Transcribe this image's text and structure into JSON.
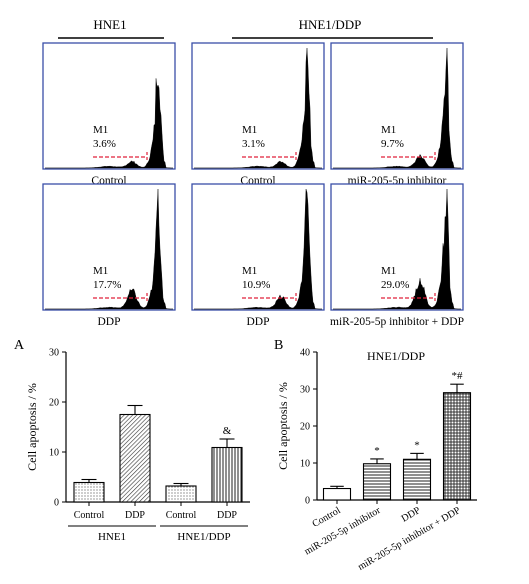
{
  "colors": {
    "panel_border": "#3a4fa8",
    "marker": "#e0203a",
    "histogram": "#000000",
    "axis": "#000000"
  },
  "top_groups": [
    "HNE1",
    "HNE1/DDP"
  ],
  "histograms": [
    {
      "gate": "M1",
      "percent": "3.6%",
      "caption": "Control",
      "value": 3.6
    },
    {
      "gate": "M1",
      "percent": "3.1%",
      "caption": "Control",
      "value": 3.1
    },
    {
      "gate": "M1",
      "percent": "9.7%",
      "caption": "miR-205-5p inhibitor",
      "value": 9.7
    },
    {
      "gate": "M1",
      "percent": "17.7%",
      "caption": "DDP",
      "value": 17.7
    },
    {
      "gate": "M1",
      "percent": "10.9%",
      "caption": "DDP",
      "value": 10.9
    },
    {
      "gate": "M1",
      "percent": "29.0%",
      "caption": "miR-205-5p inhibitor + DDP",
      "value": 29.0
    }
  ],
  "chart_data": [
    {
      "panel": "A",
      "type": "bar",
      "title": "",
      "xlabel": "",
      "ylabel": "Cell apoptosis / %",
      "ylim": [
        0,
        30
      ],
      "yticks": [
        0,
        10,
        20,
        30
      ],
      "categories": [
        "Control",
        "DDP",
        "Control",
        "DDP"
      ],
      "groups": [
        {
          "label": "HNE1",
          "categories": [
            0,
            1
          ]
        },
        {
          "label": "HNE1/DDP",
          "categories": [
            2,
            3
          ]
        }
      ],
      "values": [
        3.9,
        17.5,
        3.2,
        10.9
      ],
      "errors": [
        0.6,
        1.8,
        0.5,
        1.7
      ],
      "annotations": [
        "",
        "",
        "",
        "&"
      ],
      "patterns": [
        "dots",
        "diag",
        "dots",
        "vlines"
      ],
      "grid": false,
      "legend": "none"
    },
    {
      "panel": "B",
      "type": "bar",
      "title": "HNE1/DDP",
      "xlabel": "",
      "ylabel": "Cell apoptosis / %",
      "ylim": [
        0,
        40
      ],
      "yticks": [
        0,
        10,
        20,
        30,
        40
      ],
      "categories": [
        "Control",
        "miR-205-5p inhibitor",
        "DDP",
        "miR-205-5p inhibitor + DDP"
      ],
      "values": [
        3.1,
        9.8,
        11.0,
        29.0
      ],
      "errors": [
        0.6,
        1.3,
        1.6,
        2.3
      ],
      "annotations": [
        "",
        "*",
        "*",
        "*#"
      ],
      "patterns": [
        "none",
        "hlines",
        "hlines",
        "grid"
      ],
      "grid": false,
      "legend": "none"
    }
  ]
}
